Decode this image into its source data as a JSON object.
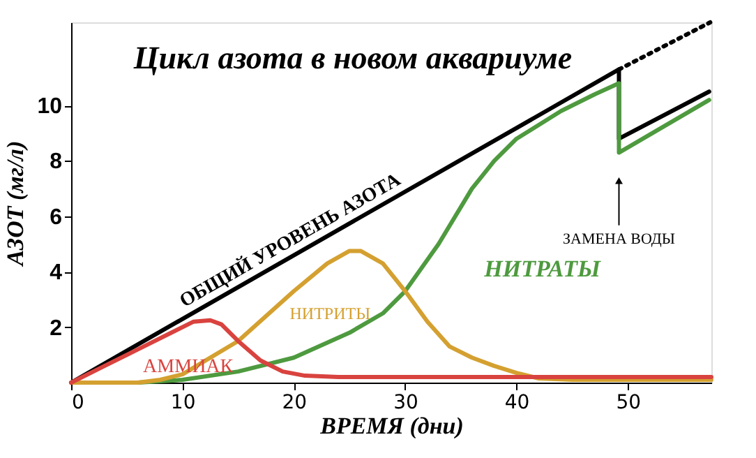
{
  "chart_data": {
    "type": "line",
    "title": "Цикл азота в новом аквариуме",
    "xlabel": "ВРЕМЯ (дни)",
    "ylabel": "АЗОТ (мг/л)",
    "xlim": [
      0,
      57.5
    ],
    "ylim": [
      0,
      13
    ],
    "xticks": [
      0,
      10,
      20,
      30,
      40,
      50
    ],
    "yticks": [
      2,
      4,
      6,
      8,
      10
    ],
    "grid": false,
    "legend": false,
    "marker": "none",
    "series": [
      {
        "name": "ОБЩИЙ УРОВЕНЬ АЗОТА",
        "color": "#000000",
        "line_style": "solid",
        "x": [
          0,
          49.2,
          49.2,
          57.3
        ],
        "values": [
          0,
          11.3,
          8.8,
          10.5
        ]
      },
      {
        "color": "#000000",
        "line_style": "dotted",
        "x": [
          49.2,
          57.4
        ],
        "values": [
          11.3,
          13.0
        ]
      },
      {
        "name": "НИТРАТЫ",
        "color": "#4e9a3f",
        "line_style": "solid",
        "x": [
          0,
          6,
          10,
          15,
          20,
          25,
          28,
          30,
          33,
          36,
          38,
          40,
          44,
          47,
          49.2,
          49.2,
          57.3
        ],
        "values": [
          0,
          0,
          0.1,
          0.4,
          0.9,
          1.8,
          2.5,
          3.3,
          5,
          7,
          8,
          8.8,
          9.8,
          10.4,
          10.8,
          8.3,
          10.2
        ]
      },
      {
        "name": "НИТРИТЫ",
        "color": "#d4a030",
        "line_style": "solid",
        "x": [
          0,
          6,
          8,
          10,
          15,
          20,
          23,
          25,
          26,
          28,
          30,
          32,
          34,
          36,
          38,
          40,
          42,
          45,
          57.5
        ],
        "values": [
          0,
          0,
          0.1,
          0.3,
          1.5,
          3.3,
          4.3,
          4.75,
          4.75,
          4.3,
          3.3,
          2.2,
          1.3,
          0.9,
          0.6,
          0.35,
          0.15,
          0.1,
          0.1
        ]
      },
      {
        "name": "АММИАК",
        "color": "#d9433f",
        "line_style": "solid",
        "x": [
          0,
          3,
          6,
          9,
          11,
          12.5,
          13.5,
          15,
          17,
          19,
          21,
          24,
          57.5
        ],
        "values": [
          0,
          0.6,
          1.2,
          1.8,
          2.2,
          2.25,
          2.1,
          1.5,
          0.8,
          0.4,
          0.25,
          0.2,
          0.2
        ]
      }
    ],
    "annotations": [
      "ЗАМЕНА ВОДЫ"
    ]
  }
}
